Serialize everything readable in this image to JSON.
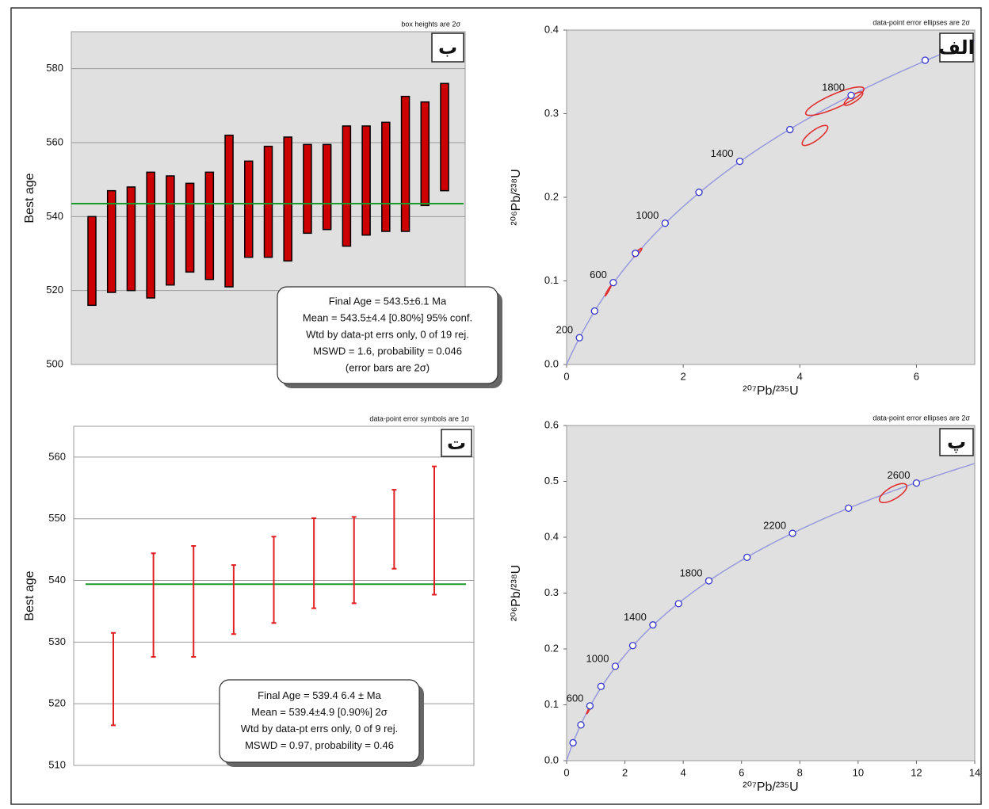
{
  "chart_data": [
    {
      "type": "floating_box",
      "note": "box heights are 2σ",
      "panel_label": "ب",
      "y_label": "Best age",
      "low": [
        516,
        519.5,
        520,
        518,
        521.5,
        525,
        523,
        521,
        529,
        529,
        528,
        535.5,
        536.5,
        532,
        535,
        536,
        536,
        543,
        547
      ],
      "high": [
        540,
        547,
        548,
        552,
        551,
        549,
        552,
        562,
        555,
        559,
        561.5,
        559.5,
        559.5,
        564.5,
        564.5,
        565.5,
        572.5,
        571,
        576
      ],
      "color": "#cc0000",
      "reference_line": 543.5,
      "reference_color": "#1a9a2a",
      "ylim": [
        500,
        590
      ],
      "yticks": [
        500,
        520,
        540,
        560,
        580
      ],
      "grid": true,
      "info_box": [
        "Final Age = 543.5±6.1 Ma",
        "Mean = 543.5±4.4  [0.80%]  95% conf.",
        "Wtd by data-pt errs only, 0 of 19 rej.",
        "MSWD = 1.6, probability = 0.046",
        "(error bars are 2σ)"
      ]
    },
    {
      "type": "concordia",
      "note": "data-point error ellipses are 2σ",
      "panel_label": "الف",
      "x_label": "²⁰⁷Pb/²³⁵U",
      "y_label": "²⁰⁶Pb/²³⁸U",
      "x": [
        0.22,
        0.48,
        0.8,
        1.18,
        1.69,
        2.27,
        2.97,
        3.83,
        4.88,
        6.15
      ],
      "y": [
        0.032,
        0.064,
        0.098,
        0.133,
        0.169,
        0.206,
        0.243,
        0.281,
        0.322,
        0.364
      ],
      "marker_labels": [
        200,
        null,
        600,
        null,
        1000,
        null,
        1400,
        null,
        1800,
        null
      ],
      "ellipses": [
        {
          "x": 4.6,
          "y": 0.315,
          "xerr": 0.5,
          "yerr": 0.017,
          "rho": 0.85
        },
        {
          "x": 4.92,
          "y": 0.318,
          "xerr": 0.16,
          "yerr": 0.008,
          "rho": 0.8
        },
        {
          "x": 4.26,
          "y": 0.274,
          "xerr": 0.22,
          "yerr": 0.012,
          "rho": 0.8
        },
        {
          "x": 0.71,
          "y": 0.088,
          "xerr": 0.05,
          "yerr": 0.006,
          "rho": 0.97
        },
        {
          "x": 1.22,
          "y": 0.134,
          "xerr": 0.07,
          "yerr": 0.005,
          "rho": 0.9
        }
      ],
      "ellipse_color": "#e03030",
      "curve_color": "#9999dd",
      "marker_color": "#3333cc",
      "xlim": [
        0,
        7
      ],
      "xticks": [
        0,
        2,
        4,
        6
      ],
      "ylim": [
        0,
        0.4
      ],
      "yticks": [
        {
          "value": 0,
          "label": "0.0"
        },
        0.1,
        0.2,
        0.3,
        0.4
      ],
      "grid": false
    },
    {
      "type": "error_bar",
      "note": "data-point error symbols are 1σ",
      "panel_label": "ت",
      "y_label": "Best age",
      "values": [
        524,
        536,
        536.6,
        536.9,
        540.1,
        542.8,
        543.3,
        548.3,
        548.1
      ],
      "errors": [
        7.5,
        8.4,
        9,
        5.6,
        7,
        7.3,
        7,
        6.4,
        10.4
      ],
      "color": "#e02020",
      "reference_line": 539.4,
      "reference_color": "#1a9a2a",
      "ylim": [
        510,
        565
      ],
      "yticks": [
        510,
        520,
        530,
        540,
        550,
        560
      ],
      "grid": true,
      "info_box": [
        "Final Age = 539.4 6.4 ± Ma",
        "Mean = 539.4±4.9  [0.90%]  2σ",
        "Wtd by data-pt errs only, 0 of 9 rej.",
        "MSWD = 0.97, probability = 0.46"
      ]
    },
    {
      "type": "concordia",
      "note": "data-point error ellipses are 2σ",
      "panel_label": "پ",
      "x_label": "²⁰⁷Pb/²³⁵U",
      "y_label": "²⁰⁶Pb/²³⁸U",
      "x": [
        0.22,
        0.49,
        0.8,
        1.18,
        1.67,
        2.27,
        2.96,
        3.84,
        4.88,
        6.19,
        7.75,
        9.67,
        12.0
      ],
      "y": [
        0.032,
        0.064,
        0.098,
        0.133,
        0.169,
        0.206,
        0.243,
        0.281,
        0.322,
        0.364,
        0.407,
        0.452,
        0.497
      ],
      "marker_labels": [
        null,
        null,
        600,
        null,
        1000,
        null,
        1400,
        null,
        1800,
        null,
        2200,
        null,
        2600
      ],
      "ellipses": [
        {
          "x": 11.2,
          "y": 0.479,
          "xerr": 0.47,
          "yerr": 0.017,
          "rho": 0.7
        },
        {
          "x": 0.75,
          "y": 0.09,
          "xerr": 0.06,
          "yerr": 0.006,
          "rho": 0.95
        }
      ],
      "ellipse_color": "#e03030",
      "curve_color": "#9999dd",
      "marker_color": "#3333cc",
      "xlim": [
        0,
        14
      ],
      "xticks": [
        0,
        2,
        4,
        6,
        8,
        10,
        12,
        14
      ],
      "ylim": [
        0,
        0.6
      ],
      "yticks": [
        {
          "value": 0,
          "label": "0.0"
        },
        0.1,
        0.2,
        0.3,
        0.4,
        0.5,
        0.6
      ],
      "grid": false
    }
  ]
}
